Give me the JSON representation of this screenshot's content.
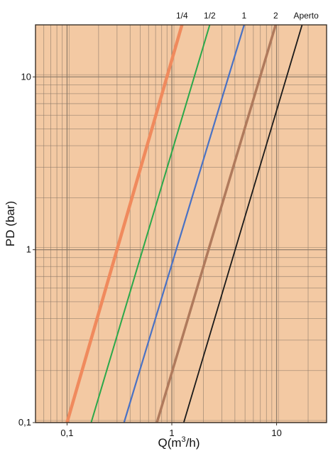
{
  "chart_data": {
    "type": "line",
    "xscale": "log",
    "yscale": "log",
    "xlim": [
      0.05,
      30
    ],
    "ylim": [
      0.1,
      20
    ],
    "xlabel_main": "Q(m",
    "xlabel_sup": "3",
    "xlabel_end": "/h)",
    "ylabel": "PD (bar)",
    "xticks": [
      {
        "value": 0.1,
        "label": "0,1"
      },
      {
        "value": 1,
        "label": "1"
      },
      {
        "value": 10,
        "label": "10"
      }
    ],
    "yticks": [
      {
        "value": 0.1,
        "label": "0,1"
      },
      {
        "value": 1,
        "label": "1"
      },
      {
        "value": 10,
        "label": "10"
      }
    ],
    "grid": true,
    "background_color": "#f3c9a3",
    "grid_color": "#8a7866",
    "series": [
      {
        "name": "1/4",
        "color": "#f08a5d",
        "width": 4.5,
        "x": [
          0.1,
          1.25
        ],
        "y": [
          0.1,
          20
        ]
      },
      {
        "name": "1/2",
        "color": "#2aa84a",
        "width": 2,
        "x": [
          0.17,
          2.3
        ],
        "y": [
          0.1,
          20
        ]
      },
      {
        "name": "1",
        "color": "#4a72c4",
        "width": 2.2,
        "x": [
          0.35,
          4.9
        ],
        "y": [
          0.1,
          20
        ]
      },
      {
        "name": "2",
        "color": "#b07a5c",
        "width": 3.5,
        "x": [
          0.72,
          9.8
        ],
        "y": [
          0.1,
          20
        ]
      },
      {
        "name": "Aperto",
        "color": "#1a1a1a",
        "width": 1.8,
        "x": [
          1.3,
          17.5
        ],
        "y": [
          0.1,
          20
        ]
      }
    ]
  }
}
